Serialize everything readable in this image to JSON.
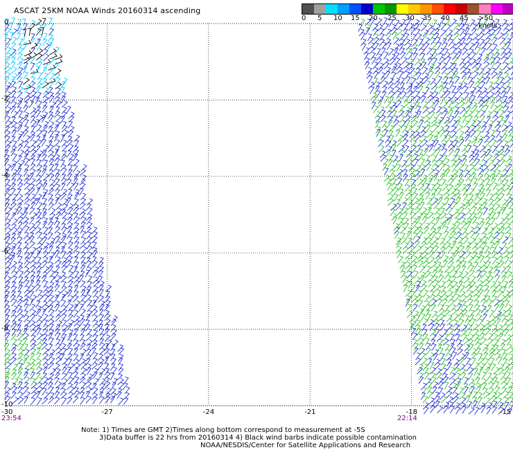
{
  "title": "ASCAT 25KM NOAA Winds 20160314 ascending",
  "legend": {
    "labels": [
      "0",
      "5",
      "10",
      "15",
      "20",
      "25",
      "30",
      "35",
      "40",
      "45",
      ">50 knots"
    ],
    "colors": [
      "#505050",
      "#a0a0a0",
      "#00e0ff",
      "#00a0ff",
      "#0050ff",
      "#0000c8",
      "#00c800",
      "#009600",
      "#ffff00",
      "#ffc800",
      "#ff9600",
      "#ff5000",
      "#ff0000",
      "#c80000",
      "#a05030",
      "#ff80c0",
      "#ff00ff",
      "#c000c0",
      "#800080"
    ]
  },
  "map": {
    "lon_min": -30,
    "lon_max": -15,
    "lat_min": -10,
    "lat_max": 0,
    "lon_ticks": [
      "-30",
      "-27",
      "-24",
      "-21",
      "-18",
      "-15"
    ],
    "lat_ticks": [
      "0",
      "-2",
      "-4",
      "-6",
      "-8",
      "-10"
    ],
    "times": {
      "left": "23:54",
      "right": "22:14"
    }
  },
  "notes": {
    "line1": "Note: 1) Times are GMT 2)Times along bottom correspond to measurement at -5S",
    "line2": "3)Data buffer is 22 hrs from 20160314 4) Black wind barbs indicate possible contamination",
    "line3": "NOAA/NESDIS/Center for Satellite Applications and Research"
  },
  "colors": {
    "green": "#22bb22",
    "blue": "#1a2ad0",
    "lightblue": "#00c8ff",
    "black": "#000000",
    "time": "#7a007a"
  }
}
